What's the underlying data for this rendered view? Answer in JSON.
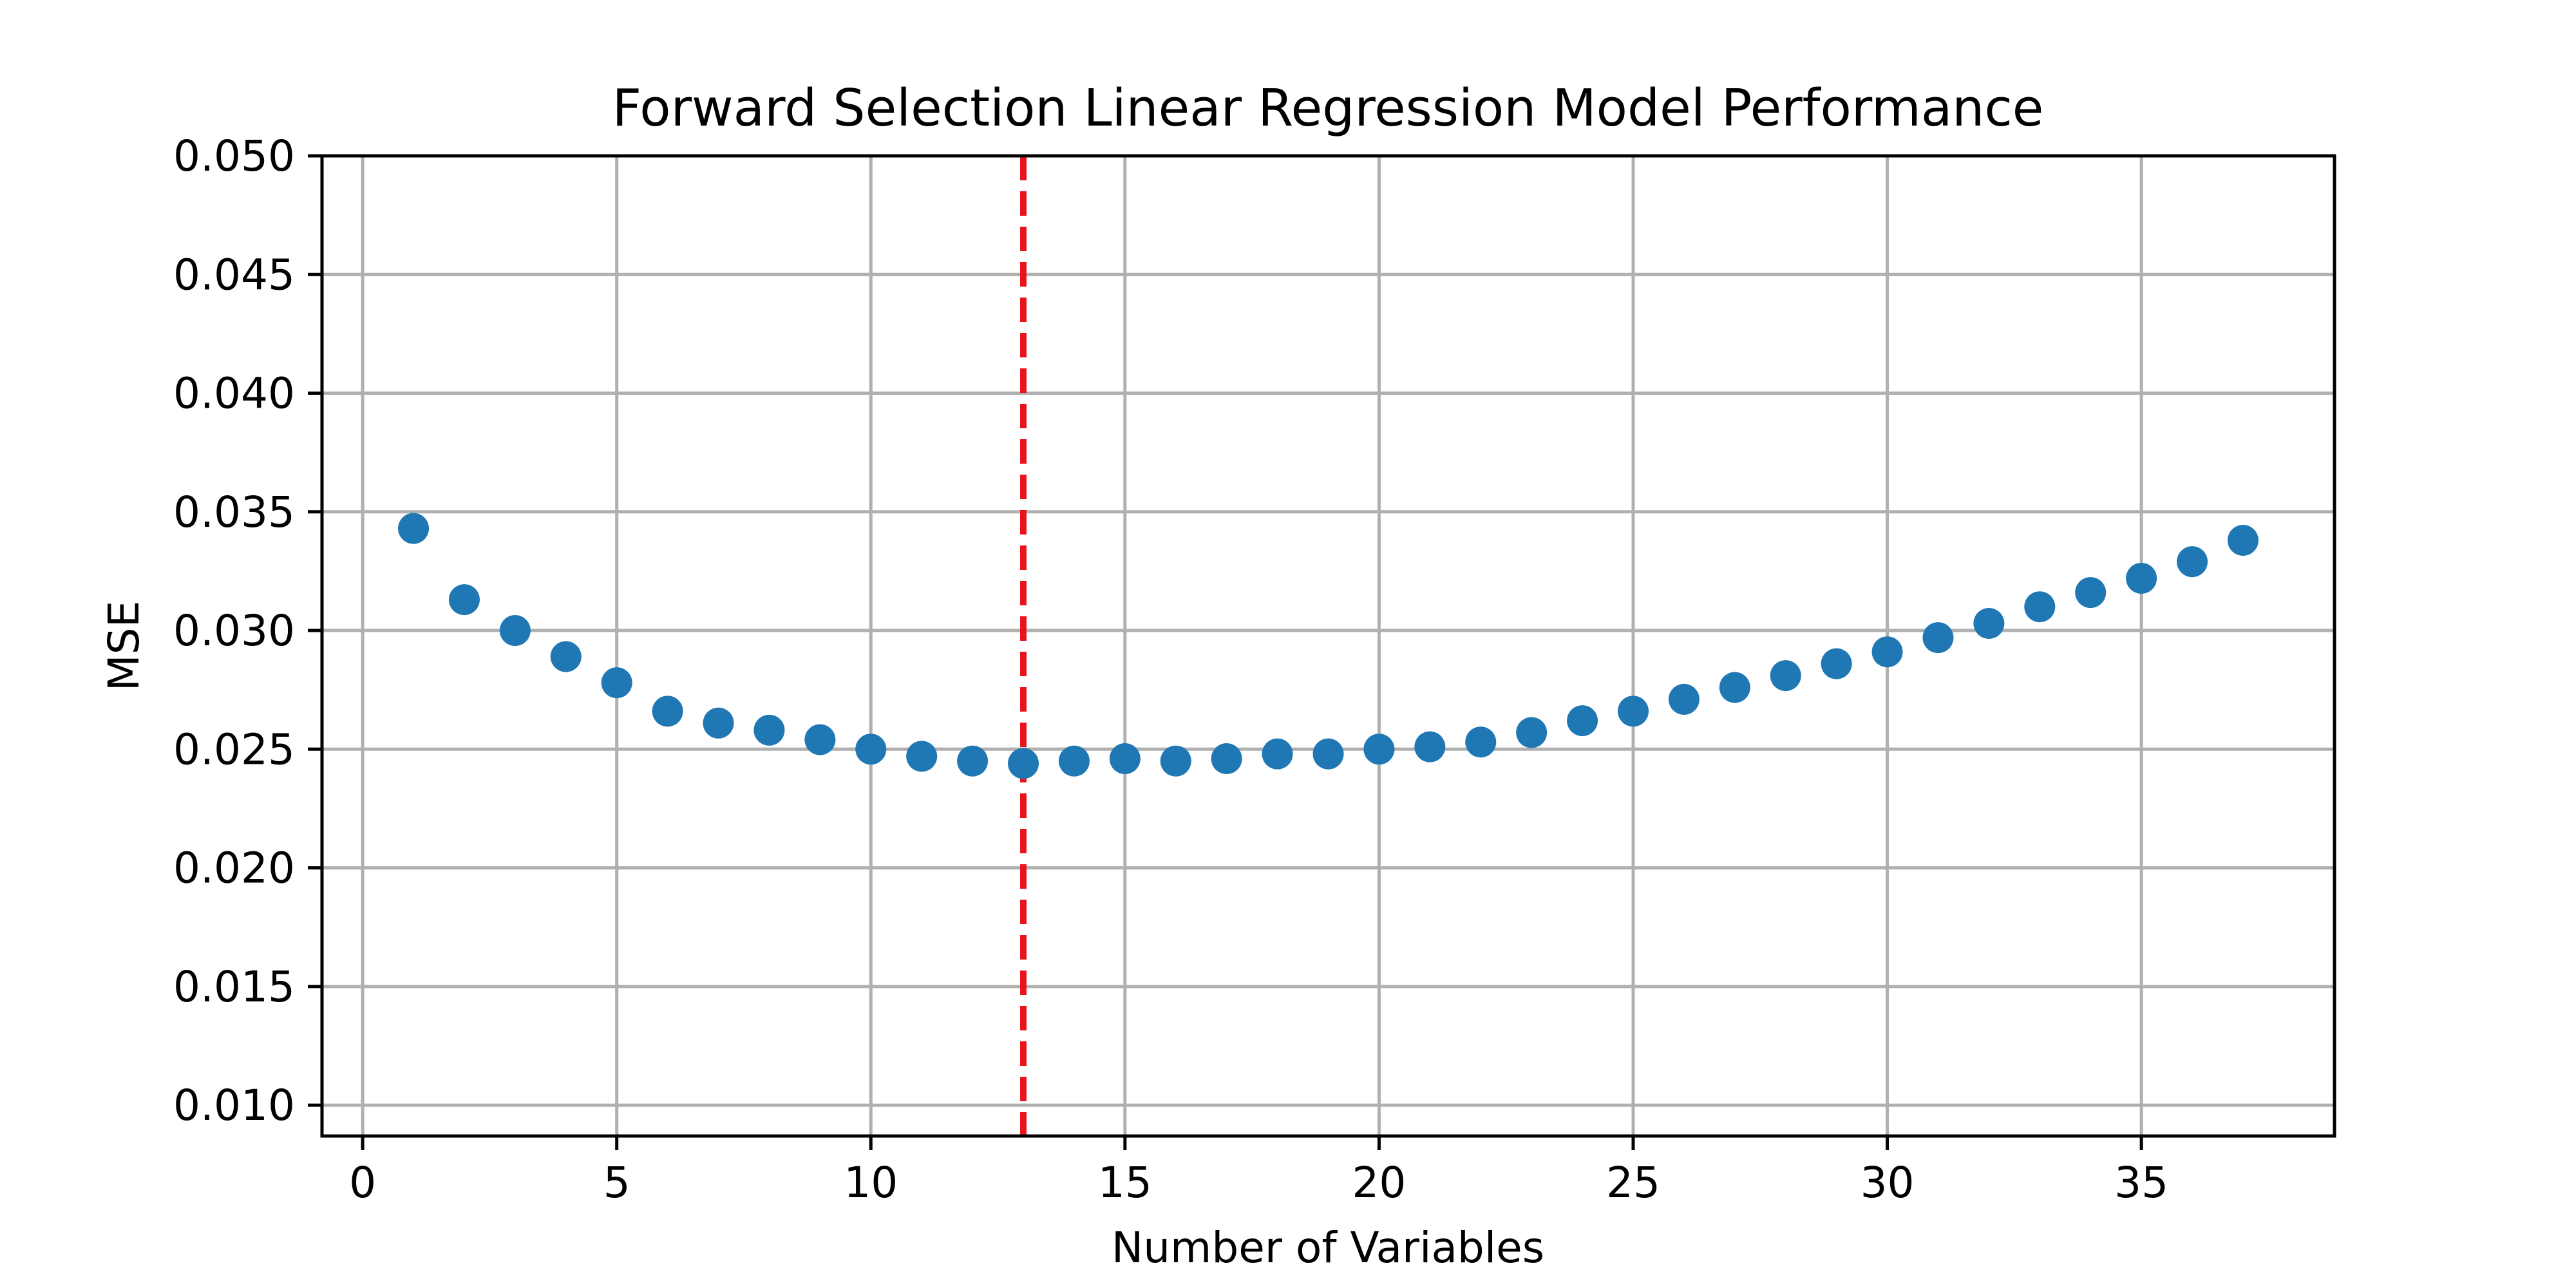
{
  "chart_data": {
    "type": "scatter",
    "title": "Forward Selection Linear Regression Model Performance",
    "xlabel": "Number of Variables",
    "ylabel": "MSE",
    "xlim": [
      -0.8,
      38.8
    ],
    "ylim": [
      0.0087,
      0.05
    ],
    "xticks": [
      0,
      5,
      10,
      15,
      20,
      25,
      30,
      35
    ],
    "yticks": [
      0.01,
      0.015,
      0.02,
      0.025,
      0.03,
      0.035,
      0.04,
      0.045,
      0.05
    ],
    "xtick_labels": [
      "0",
      "5",
      "10",
      "15",
      "20",
      "25",
      "30",
      "35"
    ],
    "ytick_labels": [
      "0.010",
      "0.015",
      "0.020",
      "0.025",
      "0.030",
      "0.035",
      "0.040",
      "0.045",
      "0.050"
    ],
    "grid": true,
    "x": [
      1,
      2,
      3,
      4,
      5,
      6,
      7,
      8,
      9,
      10,
      11,
      12,
      13,
      14,
      15,
      16,
      17,
      18,
      19,
      20,
      21,
      22,
      23,
      24,
      25,
      26,
      27,
      28,
      29,
      30,
      31,
      32,
      33,
      34,
      35,
      36,
      37
    ],
    "y": [
      0.0343,
      0.0313,
      0.03,
      0.0289,
      0.0278,
      0.0266,
      0.0261,
      0.0258,
      0.0254,
      0.025,
      0.0247,
      0.0245,
      0.0244,
      0.0245,
      0.0246,
      0.0245,
      0.0246,
      0.0248,
      0.0248,
      0.025,
      0.0251,
      0.0253,
      0.0257,
      0.0262,
      0.0266,
      0.0271,
      0.0276,
      0.0281,
      0.0286,
      0.0291,
      0.0297,
      0.0303,
      0.031,
      0.0316,
      0.0322,
      0.0329,
      0.0338
    ],
    "point_color": "#1f77b4",
    "vline": {
      "x": 13,
      "color": "#e8141c",
      "style": "dashed"
    }
  }
}
